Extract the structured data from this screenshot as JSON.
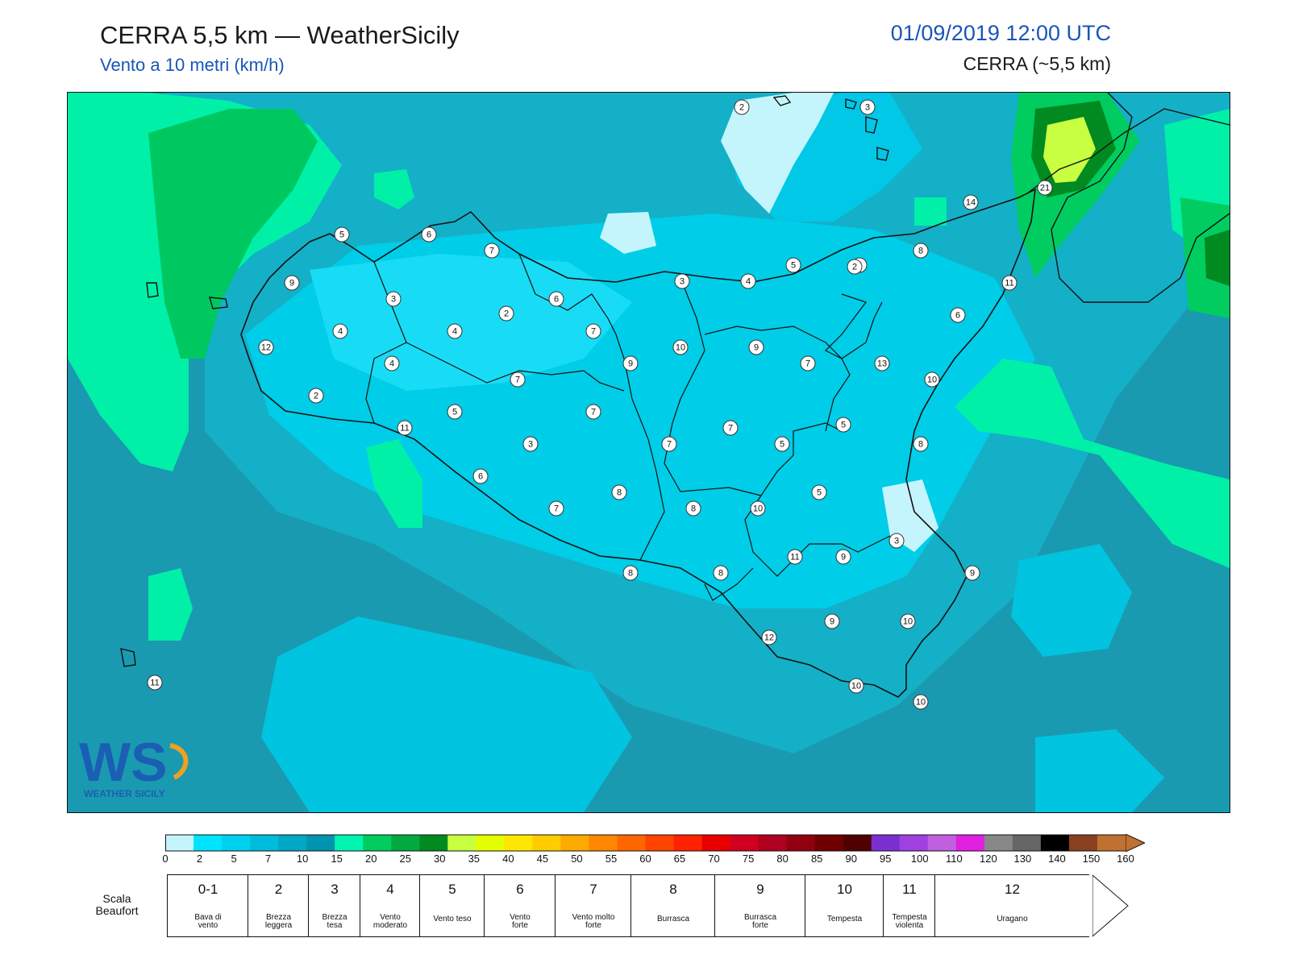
{
  "header": {
    "title": "CERRA 5,5 km — WeatherSicily",
    "subtitle": "Vento a 10 metri (km/h)",
    "datetime": "01/09/2019 12:00 UTC",
    "model": "CERRA (~5,5 km)"
  },
  "logo": {
    "text": "WEATHER SICILY",
    "letters": "WS"
  },
  "stations": [
    {
      "value": "2"
    },
    {
      "value": "3"
    },
    {
      "value": "21"
    },
    {
      "value": "14"
    },
    {
      "value": "5"
    },
    {
      "value": "6"
    },
    {
      "value": "7"
    },
    {
      "value": "9"
    },
    {
      "value": "3"
    },
    {
      "value": "6"
    },
    {
      "value": "2"
    },
    {
      "value": "3"
    },
    {
      "value": "4"
    },
    {
      "value": "2"
    },
    {
      "value": "5"
    },
    {
      "value": "2"
    },
    {
      "value": "8"
    },
    {
      "value": "11"
    },
    {
      "value": "4"
    },
    {
      "value": "4"
    },
    {
      "value": "7"
    },
    {
      "value": "12"
    },
    {
      "value": "10"
    },
    {
      "value": "9"
    },
    {
      "value": "6"
    },
    {
      "value": "9"
    },
    {
      "value": "7"
    },
    {
      "value": "13"
    },
    {
      "value": "4"
    },
    {
      "value": "7"
    },
    {
      "value": "2"
    },
    {
      "value": "10"
    },
    {
      "value": "5"
    },
    {
      "value": "7"
    },
    {
      "value": "11"
    },
    {
      "value": "7"
    },
    {
      "value": "5"
    },
    {
      "value": "3"
    },
    {
      "value": "7"
    },
    {
      "value": "5"
    },
    {
      "value": "8"
    },
    {
      "value": "6"
    },
    {
      "value": "5"
    },
    {
      "value": "8"
    },
    {
      "value": "7"
    },
    {
      "value": "8"
    },
    {
      "value": "10"
    },
    {
      "value": "3"
    },
    {
      "value": "11"
    },
    {
      "value": "9"
    },
    {
      "value": "8"
    },
    {
      "value": "8"
    },
    {
      "value": "9"
    },
    {
      "value": "12"
    },
    {
      "value": "9"
    },
    {
      "value": "10"
    },
    {
      "value": "11"
    },
    {
      "value": "10"
    },
    {
      "value": "10"
    }
  ],
  "colorbar": {
    "unit": "km/h",
    "colors": [
      "#c4f5fc",
      "#00e4ff",
      "#00d0f0",
      "#00bcdc",
      "#00a8c8",
      "#0094b0",
      "#00f5b0",
      "#00cc60",
      "#00aa40",
      "#008a20",
      "#c8ff40",
      "#e6ff00",
      "#ffe600",
      "#ffcc00",
      "#ffaa00",
      "#ff8800",
      "#ff6600",
      "#ff4400",
      "#ff2200",
      "#e80000",
      "#d00020",
      "#b00020",
      "#900010",
      "#700000",
      "#500000",
      "#7a30d0",
      "#a040e0",
      "#c060e0",
      "#e020e0",
      "#888888",
      "#666666",
      "#000000",
      "#884020",
      "#c07030"
    ],
    "ticks": [
      "0",
      "2",
      "5",
      "7",
      "10",
      "15",
      "20",
      "25",
      "30",
      "35",
      "40",
      "45",
      "50",
      "55",
      "60",
      "65",
      "70",
      "75",
      "80",
      "85",
      "90",
      "95",
      "100",
      "110",
      "120",
      "130",
      "140",
      "150",
      "160"
    ]
  },
  "beaufort": {
    "label_line1": "Scala",
    "label_line2": "Beaufort",
    "levels": [
      {
        "num": "0-1",
        "desc1": "Bava di",
        "desc2": "vento"
      },
      {
        "num": "2",
        "desc1": "Brezza",
        "desc2": "leggera"
      },
      {
        "num": "3",
        "desc1": "Brezza",
        "desc2": "tesa"
      },
      {
        "num": "4",
        "desc1": "Vento",
        "desc2": "moderato"
      },
      {
        "num": "5",
        "desc1": "Vento teso",
        "desc2": ""
      },
      {
        "num": "6",
        "desc1": "Vento",
        "desc2": "forte"
      },
      {
        "num": "7",
        "desc1": "Vento molto",
        "desc2": "forte"
      },
      {
        "num": "8",
        "desc1": "Burrasca",
        "desc2": ""
      },
      {
        "num": "9",
        "desc1": "Burrasca",
        "desc2": "forte"
      },
      {
        "num": "10",
        "desc1": "Tempesta",
        "desc2": ""
      },
      {
        "num": "11",
        "desc1": "Tempesta",
        "desc2": "violenta"
      },
      {
        "num": "12",
        "desc1": "Uragano",
        "desc2": ""
      }
    ]
  }
}
